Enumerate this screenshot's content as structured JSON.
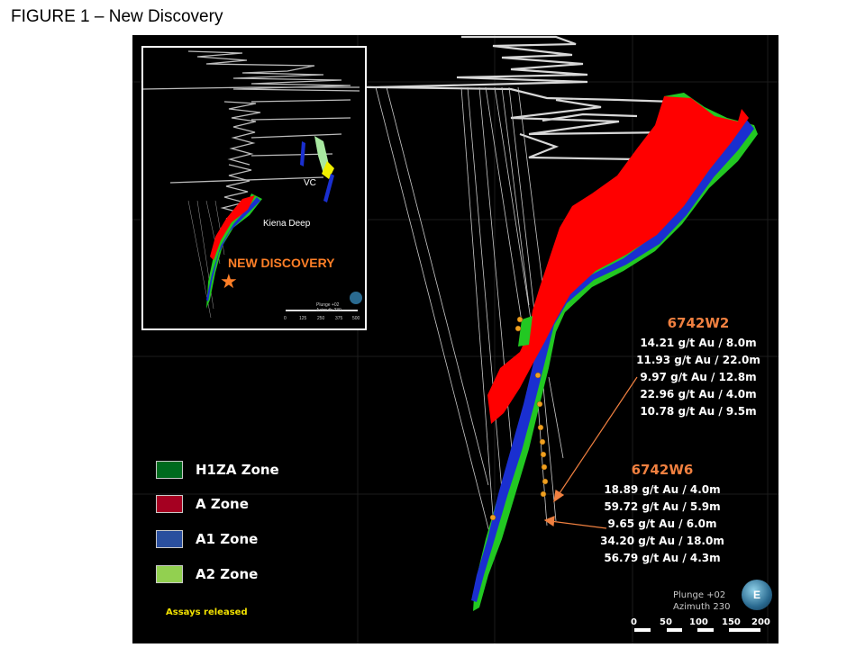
{
  "figure_title": "FIGURE 1 – New Discovery",
  "inset": {
    "label_vc": "VC",
    "label_kiena": "Kiena Deep",
    "new_discovery": "NEW DISCOVERY",
    "star_icon": "★",
    "orientation_line1": "Plunge +02",
    "orientation_line2": "Azimuth 230",
    "scale_ticks": [
      "0",
      "125",
      "250",
      "375",
      "500"
    ]
  },
  "holes": [
    {
      "name": "6742W2",
      "assays": [
        "14.21 g/t Au / 8.0m",
        "11.93 g/t Au / 22.0m",
        "9.97 g/t Au / 12.8m",
        "22.96 g/t Au / 4.0m",
        "10.78 g/t Au / 9.5m"
      ]
    },
    {
      "name": "6742W6",
      "assays": [
        "18.89 g/t Au / 4.0m",
        "59.72 g/t Au / 5.9m",
        "9.65 g/t Au / 6.0m",
        "34.20 g/t Au / 18.0m",
        "56.79 g/t Au / 4.3m"
      ]
    }
  ],
  "legend": [
    {
      "label": "H1ZA Zone",
      "color": "#006a1e"
    },
    {
      "label": "A Zone",
      "color": "#a50021"
    },
    {
      "label": "A1 Zone",
      "color": "#2a4f9e"
    },
    {
      "label": "A2 Zone",
      "color": "#92d050"
    }
  ],
  "assays_released": "Assays  released",
  "orientation": {
    "line1": "Plunge +02",
    "line2": "Azimuth 230"
  },
  "compass_text": "E",
  "scale_ticks": [
    "0",
    "50",
    "100",
    "150",
    "200"
  ],
  "colors": {
    "a_zone_red": "#ff0000",
    "a1_blue": "#1a2fd0",
    "a2_green": "#22cc22",
    "callout_orange": "#f08040",
    "assay_marker": "#f0a020"
  }
}
